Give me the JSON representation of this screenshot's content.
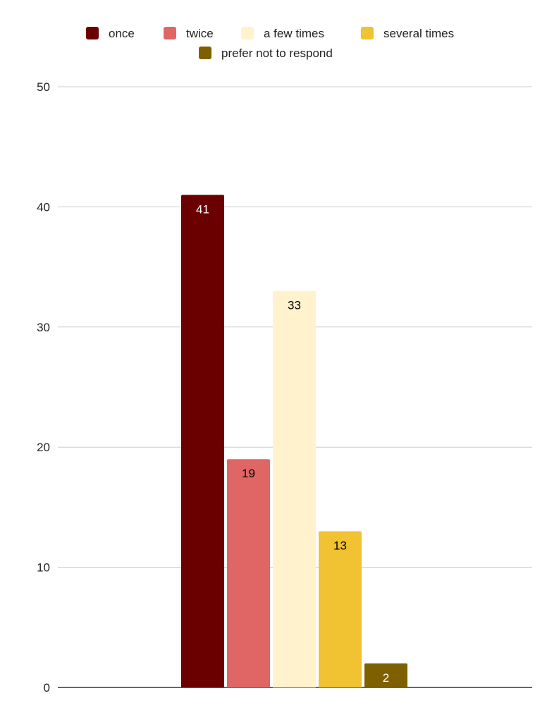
{
  "chart_data": {
    "type": "bar",
    "title": "",
    "xlabel": "",
    "ylabel": "",
    "ylim": [
      0,
      50
    ],
    "yticks": [
      0,
      10,
      20,
      30,
      40,
      50
    ],
    "grid": true,
    "legend_position": "top",
    "categories": [
      ""
    ],
    "series": [
      {
        "name": "once",
        "values": [
          41
        ],
        "color": "#6b0000",
        "label_color": "#ffffff"
      },
      {
        "name": "twice",
        "values": [
          19
        ],
        "color": "#e06666",
        "label_color": "#000000"
      },
      {
        "name": "a few times",
        "values": [
          33
        ],
        "color": "#fff2cc",
        "label_color": "#000000"
      },
      {
        "name": "several times",
        "values": [
          13
        ],
        "color": "#f1c232",
        "label_color": "#000000"
      },
      {
        "name": "prefer not to respond",
        "values": [
          2
        ],
        "color": "#7f6000",
        "label_color": "#ffffff"
      }
    ]
  }
}
